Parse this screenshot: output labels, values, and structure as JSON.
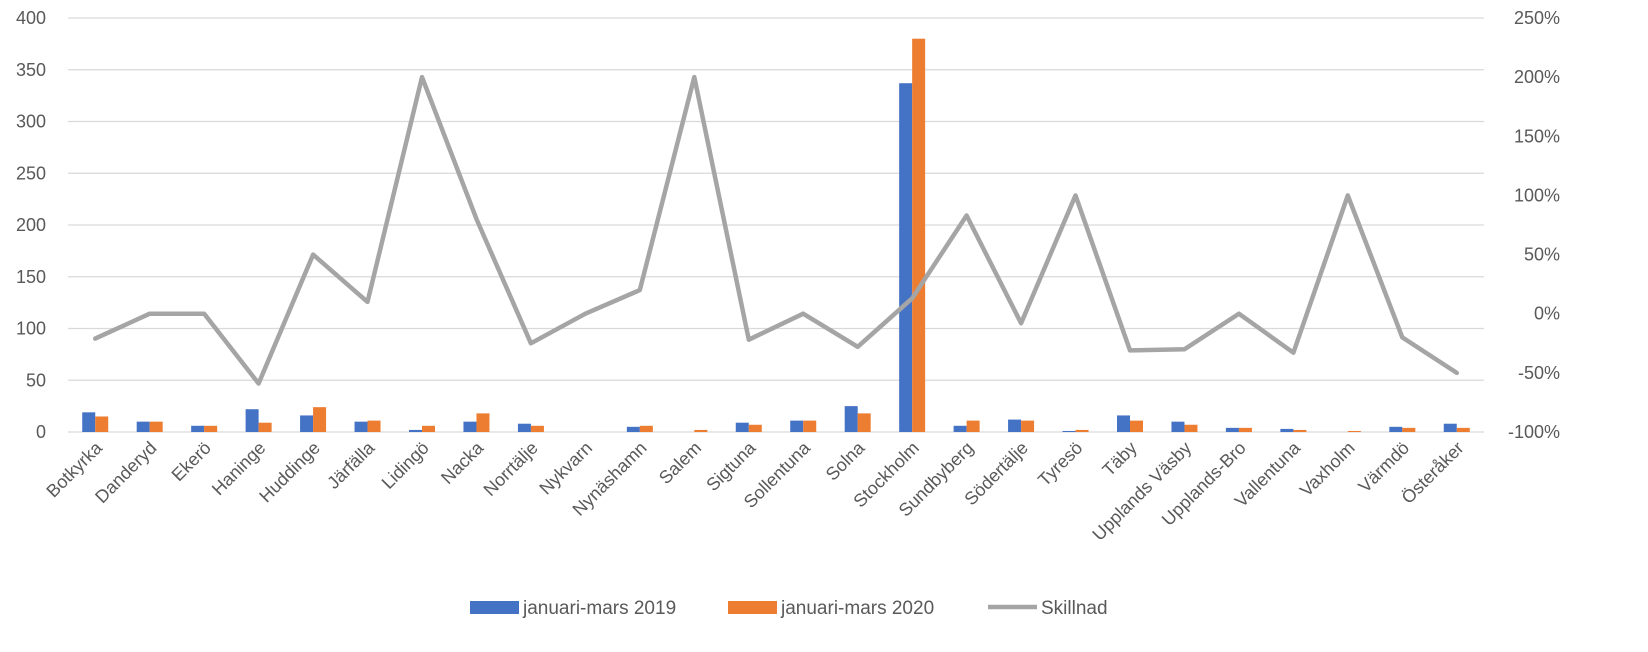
{
  "chart_data": {
    "type": "bar",
    "title": "",
    "xlabel": "",
    "ylabel": "",
    "ylim": [
      0,
      400
    ],
    "y2lim": [
      -100,
      250
    ],
    "y_ticks": [
      "0",
      "50",
      "100",
      "150",
      "200",
      "250",
      "300",
      "350",
      "400"
    ],
    "y2_ticks": [
      "-100%",
      "-50%",
      "0%",
      "50%",
      "100%",
      "150%",
      "200%",
      "250%"
    ],
    "grid": true,
    "legend_position": "bottom",
    "categories": [
      "Botkyrka",
      "Danderyd",
      "Ekerö",
      "Haninge",
      "Huddinge",
      "Järfälla",
      "Lidingö",
      "Nacka",
      "Norrtälje",
      "Nykvarn",
      "Nynäshamn",
      "Salem",
      "Sigtuna",
      "Sollentuna",
      "Solna",
      "Stockholm",
      "Sundbyberg",
      "Södertälje",
      "Tyresö",
      "Täby",
      "Upplands Väsby",
      "Upplands-Bro",
      "Vallentuna",
      "Vaxholm",
      "Värmdö",
      "Österåker"
    ],
    "series": [
      {
        "name": "januari-mars 2019",
        "kind": "bar",
        "axis": "left",
        "color": "#4472C4",
        "values": [
          19,
          10,
          6,
          22,
          16,
          10,
          2,
          10,
          8,
          0,
          5,
          0,
          9,
          11,
          25,
          337,
          6,
          12,
          1,
          16,
          10,
          4,
          3,
          0,
          5,
          8
        ]
      },
      {
        "name": "januari-mars 2020",
        "kind": "bar",
        "axis": "left",
        "color": "#ED7D31",
        "values": [
          15,
          10,
          6,
          9,
          24,
          11,
          6,
          18,
          6,
          0,
          6,
          2,
          7,
          11,
          18,
          380,
          11,
          11,
          2,
          11,
          7,
          4,
          2,
          1,
          4,
          4
        ]
      },
      {
        "name": "Skillnad",
        "kind": "line",
        "axis": "right",
        "color": "#A5A5A5",
        "values": [
          -21,
          0,
          0,
          -59,
          50,
          10,
          200,
          80,
          -25,
          0,
          20,
          200,
          -22,
          0,
          -28,
          13,
          83,
          -8,
          100,
          -31,
          -30,
          0,
          -33,
          100,
          -20,
          -50
        ]
      }
    ]
  }
}
